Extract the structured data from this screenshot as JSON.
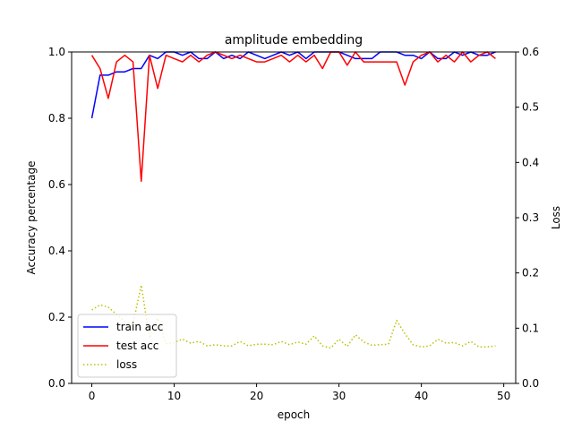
{
  "chart_data": {
    "type": "line",
    "title": "amplitude embedding",
    "xlabel": "epoch",
    "ylabel": "Accuracy percentage",
    "y2label": "Loss",
    "xlim": [
      -2.45,
      51.45
    ],
    "ylim": [
      0,
      1.0
    ],
    "y2lim": [
      0,
      0.6
    ],
    "xticks": [
      0,
      10,
      20,
      30,
      40,
      50
    ],
    "yticks": [
      0.0,
      0.2,
      0.4,
      0.6,
      0.8,
      1.0
    ],
    "y2ticks": [
      0.0,
      0.1,
      0.2,
      0.3,
      0.4,
      0.5,
      0.6
    ],
    "ytick_labels": [
      "0.0",
      "0.2",
      "0.4",
      "0.6",
      "0.8",
      "1.0"
    ],
    "y2tick_labels": [
      "0.0",
      "0.1",
      "0.2",
      "0.3",
      "0.4",
      "0.5",
      "0.6"
    ],
    "legend_position": "lower-left",
    "grid": false,
    "series": [
      {
        "name": "train acc",
        "axis": "left",
        "color": "#0000ff",
        "style": "solid",
        "x": [
          0,
          1,
          2,
          3,
          4,
          5,
          6,
          7,
          8,
          9,
          10,
          11,
          12,
          13,
          14,
          15,
          16,
          17,
          18,
          19,
          20,
          21,
          22,
          23,
          24,
          25,
          26,
          27,
          28,
          29,
          30,
          31,
          32,
          33,
          34,
          35,
          36,
          37,
          38,
          39,
          40,
          41,
          42,
          43,
          44,
          45,
          46,
          47,
          48,
          49
        ],
        "values": [
          0.8,
          0.93,
          0.93,
          0.94,
          0.94,
          0.95,
          0.95,
          0.99,
          0.98,
          1.0,
          1.0,
          0.99,
          1.0,
          0.98,
          0.98,
          1.0,
          0.98,
          0.99,
          0.98,
          1.0,
          0.99,
          0.98,
          0.99,
          1.0,
          0.99,
          1.0,
          0.98,
          1.0,
          1.0,
          1.0,
          1.0,
          0.99,
          0.98,
          0.98,
          0.98,
          1.0,
          1.0,
          1.0,
          0.99,
          0.99,
          0.98,
          1.0,
          0.98,
          0.98,
          1.0,
          0.99,
          1.0,
          0.99,
          0.99,
          1.0
        ]
      },
      {
        "name": "test acc",
        "axis": "left",
        "color": "#ff0000",
        "style": "solid",
        "x": [
          0,
          1,
          2,
          3,
          4,
          5,
          6,
          7,
          8,
          9,
          10,
          11,
          12,
          13,
          14,
          15,
          16,
          17,
          18,
          19,
          20,
          21,
          22,
          23,
          24,
          25,
          26,
          27,
          28,
          29,
          30,
          31,
          32,
          33,
          34,
          35,
          36,
          37,
          38,
          39,
          40,
          41,
          42,
          43,
          44,
          45,
          46,
          47,
          48,
          49
        ],
        "values": [
          0.99,
          0.95,
          0.86,
          0.97,
          0.99,
          0.97,
          0.61,
          0.99,
          0.89,
          0.99,
          0.98,
          0.97,
          0.99,
          0.97,
          0.99,
          1.0,
          0.99,
          0.98,
          0.99,
          0.98,
          0.97,
          0.97,
          0.98,
          0.99,
          0.97,
          0.99,
          0.97,
          0.99,
          0.95,
          1.0,
          1.0,
          0.96,
          1.0,
          0.97,
          0.97,
          0.97,
          0.97,
          0.97,
          0.9,
          0.97,
          0.99,
          1.0,
          0.97,
          0.99,
          0.97,
          1.0,
          0.97,
          0.99,
          1.0,
          0.98
        ]
      },
      {
        "name": "loss",
        "axis": "right",
        "color": "#bfbf00",
        "style": "dotted",
        "x": [
          0,
          1,
          2,
          3,
          4,
          5,
          6,
          7,
          8,
          9,
          10,
          11,
          12,
          13,
          14,
          15,
          16,
          17,
          18,
          19,
          20,
          21,
          22,
          23,
          24,
          25,
          26,
          27,
          28,
          29,
          30,
          31,
          32,
          33,
          34,
          35,
          36,
          37,
          38,
          39,
          40,
          41,
          42,
          43,
          44,
          45,
          46,
          47,
          48,
          49
        ],
        "values": [
          0.133,
          0.142,
          0.138,
          0.125,
          0.112,
          0.108,
          0.178,
          0.082,
          0.118,
          0.072,
          0.074,
          0.08,
          0.073,
          0.076,
          0.068,
          0.07,
          0.068,
          0.068,
          0.076,
          0.068,
          0.071,
          0.071,
          0.07,
          0.076,
          0.07,
          0.075,
          0.071,
          0.086,
          0.068,
          0.064,
          0.08,
          0.067,
          0.088,
          0.075,
          0.069,
          0.07,
          0.071,
          0.114,
          0.09,
          0.07,
          0.066,
          0.068,
          0.08,
          0.073,
          0.074,
          0.068,
          0.076,
          0.066,
          0.066,
          0.068
        ]
      }
    ]
  }
}
